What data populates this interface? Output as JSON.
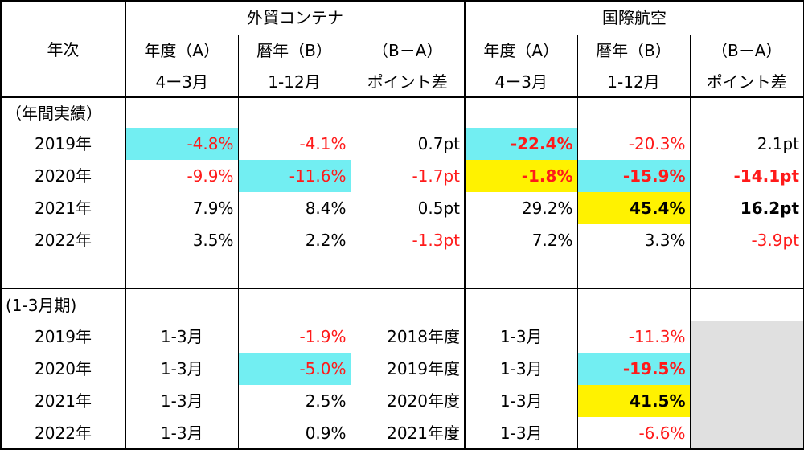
{
  "header": {
    "year_col": "年次",
    "group_left": "外貿コンテナ",
    "group_right": "国際航空",
    "col_fy_line1": "年度（A）",
    "col_fy_line2": "4ー3月",
    "col_cy_line1": "暦年（B）",
    "col_cy_line2": "1-12月",
    "col_diff_line1": "（B－A）",
    "col_diff_line2": "ポイント差"
  },
  "sections": {
    "annual_label": "（年間実績）",
    "quarter_label": "(1-3月期)"
  },
  "annual_rows": [
    {
      "year": "2019年",
      "c_fy": "-4.8%",
      "c_cy": "-4.1%",
      "c_diff": "0.7pt",
      "a_fy": "-22.4%",
      "a_cy": "-20.3%",
      "a_diff": "2.1pt"
    },
    {
      "year": "2020年",
      "c_fy": "-9.9%",
      "c_cy": "-11.6%",
      "c_diff": "-1.7pt",
      "a_fy": "-1.8%",
      "a_cy": "-15.9%",
      "a_diff": "-14.1pt"
    },
    {
      "year": "2021年",
      "c_fy": "7.9%",
      "c_cy": "8.4%",
      "c_diff": "0.5pt",
      "a_fy": "29.2%",
      "a_cy": "45.4%",
      "a_diff": "16.2pt"
    },
    {
      "year": "2022年",
      "c_fy": "3.5%",
      "c_cy": "2.2%",
      "c_diff": "-1.3pt",
      "a_fy": "7.2%",
      "a_cy": "3.3%",
      "a_diff": "-3.9pt"
    }
  ],
  "quarter_rows": [
    {
      "year": "2019年",
      "c_period": "1-3月",
      "c_value": "-1.9%",
      "c_fiscal": "2018年度",
      "a_period": "1-3月",
      "a_value": "-11.3%"
    },
    {
      "year": "2020年",
      "c_period": "1-3月",
      "c_value": "-5.0%",
      "c_fiscal": "2019年度",
      "a_period": "1-3月",
      "a_value": "-19.5%"
    },
    {
      "year": "2021年",
      "c_period": "1-3月",
      "c_value": "2.5%",
      "c_fiscal": "2020年度",
      "a_period": "1-3月",
      "a_value": "41.5%"
    },
    {
      "year": "2022年",
      "c_period": "1-3月",
      "c_value": "0.9%",
      "c_fiscal": "2021年度",
      "a_period": "1-3月",
      "a_value": "-6.6%"
    }
  ],
  "colors": {
    "negative_text": "#ff1a1a",
    "highlight_cyan": "#72eef2",
    "highlight_yellow": "#fff200",
    "blank_gray": "#e0e0e0"
  }
}
